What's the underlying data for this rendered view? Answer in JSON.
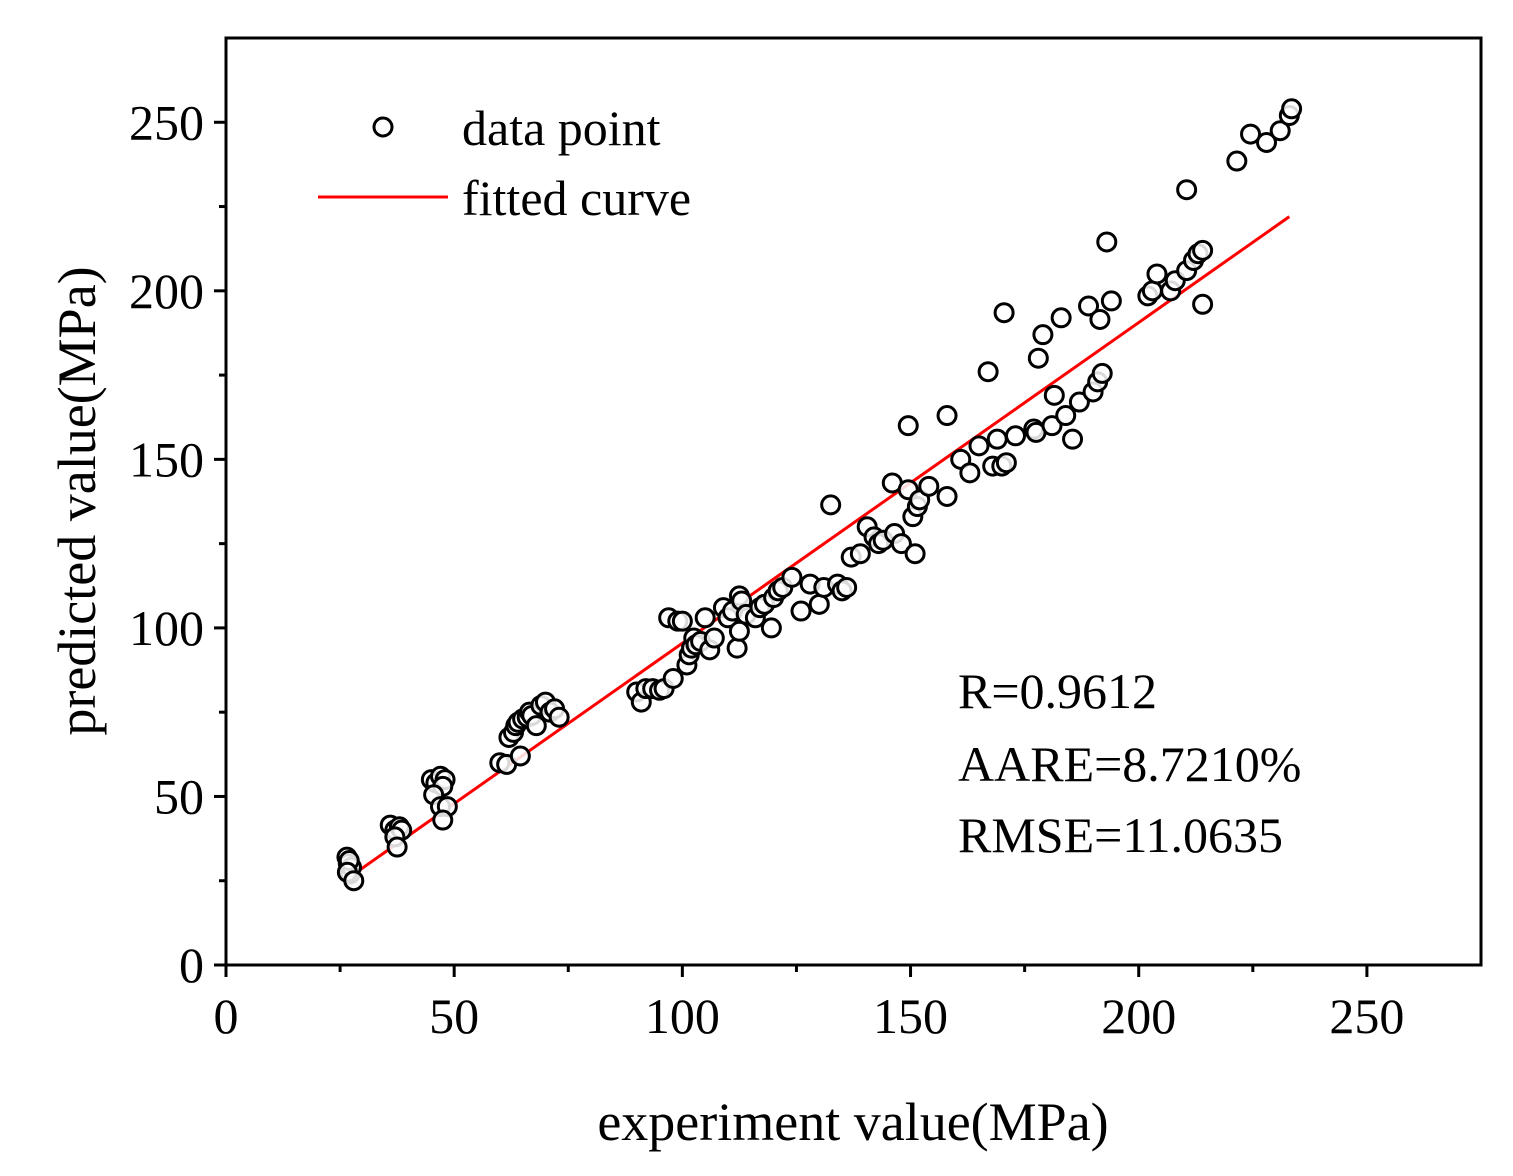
{
  "chart_data": {
    "type": "scatter",
    "xlabel": "experiment value(MPa)",
    "ylabel": "predicted value(MPa)",
    "xlim": [
      0,
      275
    ],
    "ylim": [
      0,
      275
    ],
    "xticks": [
      0,
      50,
      100,
      150,
      200,
      250
    ],
    "yticks": [
      0,
      50,
      100,
      150,
      200,
      250
    ],
    "xtick_labels": [
      "0",
      "50",
      "100",
      "150",
      "200",
      "250"
    ],
    "ytick_labels": [
      "0",
      "50",
      "100",
      "150",
      "200",
      "250"
    ],
    "grid": false,
    "legend_position": "top-left",
    "legend": [
      {
        "label": "data point",
        "marker": "open-circle"
      },
      {
        "label": "fitted curve",
        "marker": "line",
        "color": "#ff0000"
      }
    ],
    "annotations": [
      "R=0.9612",
      "AARE=8.7210%",
      "RMSE=11.0635"
    ],
    "fitted_curve": {
      "name": "fitted curve",
      "color": "#ff0000",
      "x": [
        27,
        233
      ],
      "y": [
        26,
        222
      ]
    },
    "data_point_series": {
      "name": "data point",
      "points": [
        [
          26.5,
          32
        ],
        [
          26.8,
          30
        ],
        [
          27,
          28
        ],
        [
          27.2,
          27
        ],
        [
          27.5,
          29
        ],
        [
          27,
          31
        ],
        [
          26.6,
          27.5
        ],
        [
          28,
          25
        ],
        [
          36,
          41.5
        ],
        [
          37,
          40
        ],
        [
          38,
          41
        ],
        [
          38.5,
          40
        ],
        [
          37,
          38
        ],
        [
          37.5,
          35
        ],
        [
          45,
          55
        ],
        [
          46,
          54
        ],
        [
          47,
          56
        ],
        [
          48,
          55
        ],
        [
          47.5,
          53
        ],
        [
          45.5,
          50.5
        ],
        [
          47,
          47
        ],
        [
          48.5,
          47
        ],
        [
          47.5,
          43
        ],
        [
          60,
          60
        ],
        [
          61.5,
          59.5
        ],
        [
          62,
          67.5
        ],
        [
          63,
          69
        ],
        [
          63.5,
          71
        ],
        [
          64,
          72
        ],
        [
          65,
          73
        ],
        [
          64.5,
          62
        ],
        [
          66,
          73.5
        ],
        [
          66.5,
          75
        ],
        [
          67,
          74
        ],
        [
          68,
          71
        ],
        [
          69,
          77
        ],
        [
          70,
          78
        ],
        [
          71,
          75
        ],
        [
          72,
          76
        ],
        [
          73,
          73.5
        ],
        [
          90,
          81
        ],
        [
          91,
          78
        ],
        [
          92,
          82
        ],
        [
          93.5,
          82
        ],
        [
          95,
          81.5
        ],
        [
          96,
          82
        ],
        [
          97,
          103
        ],
        [
          98,
          85
        ],
        [
          99,
          102
        ],
        [
          100,
          102
        ],
        [
          101,
          89
        ],
        [
          101.5,
          92
        ],
        [
          102,
          94
        ],
        [
          102.5,
          97
        ],
        [
          103,
          95
        ],
        [
          104,
          96
        ],
        [
          105,
          103
        ],
        [
          106,
          93.5
        ],
        [
          107,
          97
        ],
        [
          109,
          106
        ],
        [
          110,
          103
        ],
        [
          111,
          105
        ],
        [
          112,
          94
        ],
        [
          112.5,
          99
        ],
        [
          112.5,
          109.5
        ],
        [
          113,
          108
        ],
        [
          114,
          104
        ],
        [
          116,
          103
        ],
        [
          117,
          106
        ],
        [
          118,
          107
        ],
        [
          119.5,
          100
        ],
        [
          120,
          109
        ],
        [
          121,
          111
        ],
        [
          122,
          112
        ],
        [
          124,
          115
        ],
        [
          126,
          105
        ],
        [
          128,
          113
        ],
        [
          130,
          107
        ],
        [
          131,
          112
        ],
        [
          132.5,
          136.5
        ],
        [
          134,
          113
        ],
        [
          135,
          111
        ],
        [
          136,
          112
        ],
        [
          137,
          121
        ],
        [
          139,
          122
        ],
        [
          140.5,
          130
        ],
        [
          142,
          127
        ],
        [
          143,
          125
        ],
        [
          144,
          126
        ],
        [
          146,
          143
        ],
        [
          146.5,
          128
        ],
        [
          148,
          125
        ],
        [
          149.5,
          160
        ],
        [
          149.5,
          141
        ],
        [
          150.5,
          133
        ],
        [
          151,
          122
        ],
        [
          151.5,
          136
        ],
        [
          152,
          138
        ],
        [
          154,
          142
        ],
        [
          158,
          163
        ],
        [
          158,
          139
        ],
        [
          161,
          150
        ],
        [
          163,
          146
        ],
        [
          165,
          154
        ],
        [
          167,
          176
        ],
        [
          168,
          148
        ],
        [
          169,
          156
        ],
        [
          170,
          148
        ],
        [
          170.5,
          193.5
        ],
        [
          171,
          149
        ],
        [
          173,
          157
        ],
        [
          177,
          159
        ],
        [
          177.5,
          158
        ],
        [
          178,
          180
        ],
        [
          179,
          187
        ],
        [
          181,
          160
        ],
        [
          181.5,
          169
        ],
        [
          183,
          192
        ],
        [
          184,
          163
        ],
        [
          185.5,
          156
        ],
        [
          187,
          167
        ],
        [
          189,
          195.5
        ],
        [
          190,
          170
        ],
        [
          191,
          173
        ],
        [
          191.5,
          191.5
        ],
        [
          192,
          175.5
        ],
        [
          193,
          214.5
        ],
        [
          194,
          197
        ],
        [
          202,
          198.5
        ],
        [
          203,
          200
        ],
        [
          204,
          205
        ],
        [
          207,
          200
        ],
        [
          208,
          203
        ],
        [
          210.5,
          206
        ],
        [
          210.5,
          230
        ],
        [
          212,
          209
        ],
        [
          213,
          211
        ],
        [
          214,
          212
        ],
        [
          214,
          196
        ],
        [
          221.5,
          238.5
        ],
        [
          224.5,
          246.5
        ],
        [
          228,
          244
        ],
        [
          231,
          247.5
        ],
        [
          233,
          252
        ],
        [
          233.5,
          254
        ]
      ]
    }
  }
}
